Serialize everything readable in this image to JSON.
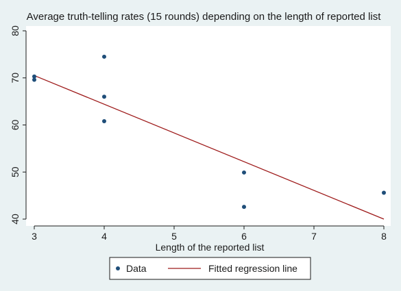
{
  "chart_data": {
    "type": "scatter",
    "title": "Average truth-telling rates (15 rounds) depending on the length of reported list",
    "xlabel": "Length of the reported list",
    "ylabel": "",
    "xlim": [
      3,
      8
    ],
    "ylim": [
      40,
      80
    ],
    "x_ticks": [
      3,
      4,
      5,
      6,
      7,
      8
    ],
    "y_ticks": [
      40,
      50,
      60,
      70,
      80
    ],
    "grid": false,
    "legend_position": "bottom",
    "series": [
      {
        "name": "Data",
        "kind": "scatter",
        "color": "#1f4e79",
        "points": [
          {
            "x": 3,
            "y": 70.3
          },
          {
            "x": 3,
            "y": 69.6
          },
          {
            "x": 4,
            "y": 74.5
          },
          {
            "x": 4,
            "y": 66.0
          },
          {
            "x": 4,
            "y": 60.8
          },
          {
            "x": 6,
            "y": 49.9
          },
          {
            "x": 6,
            "y": 42.6
          },
          {
            "x": 8,
            "y": 45.6
          }
        ]
      },
      {
        "name": "Fitted regression line",
        "kind": "line",
        "color": "#9e1b1b",
        "points": [
          {
            "x": 3,
            "y": 70.5
          },
          {
            "x": 8,
            "y": 40.0
          }
        ]
      }
    ]
  }
}
